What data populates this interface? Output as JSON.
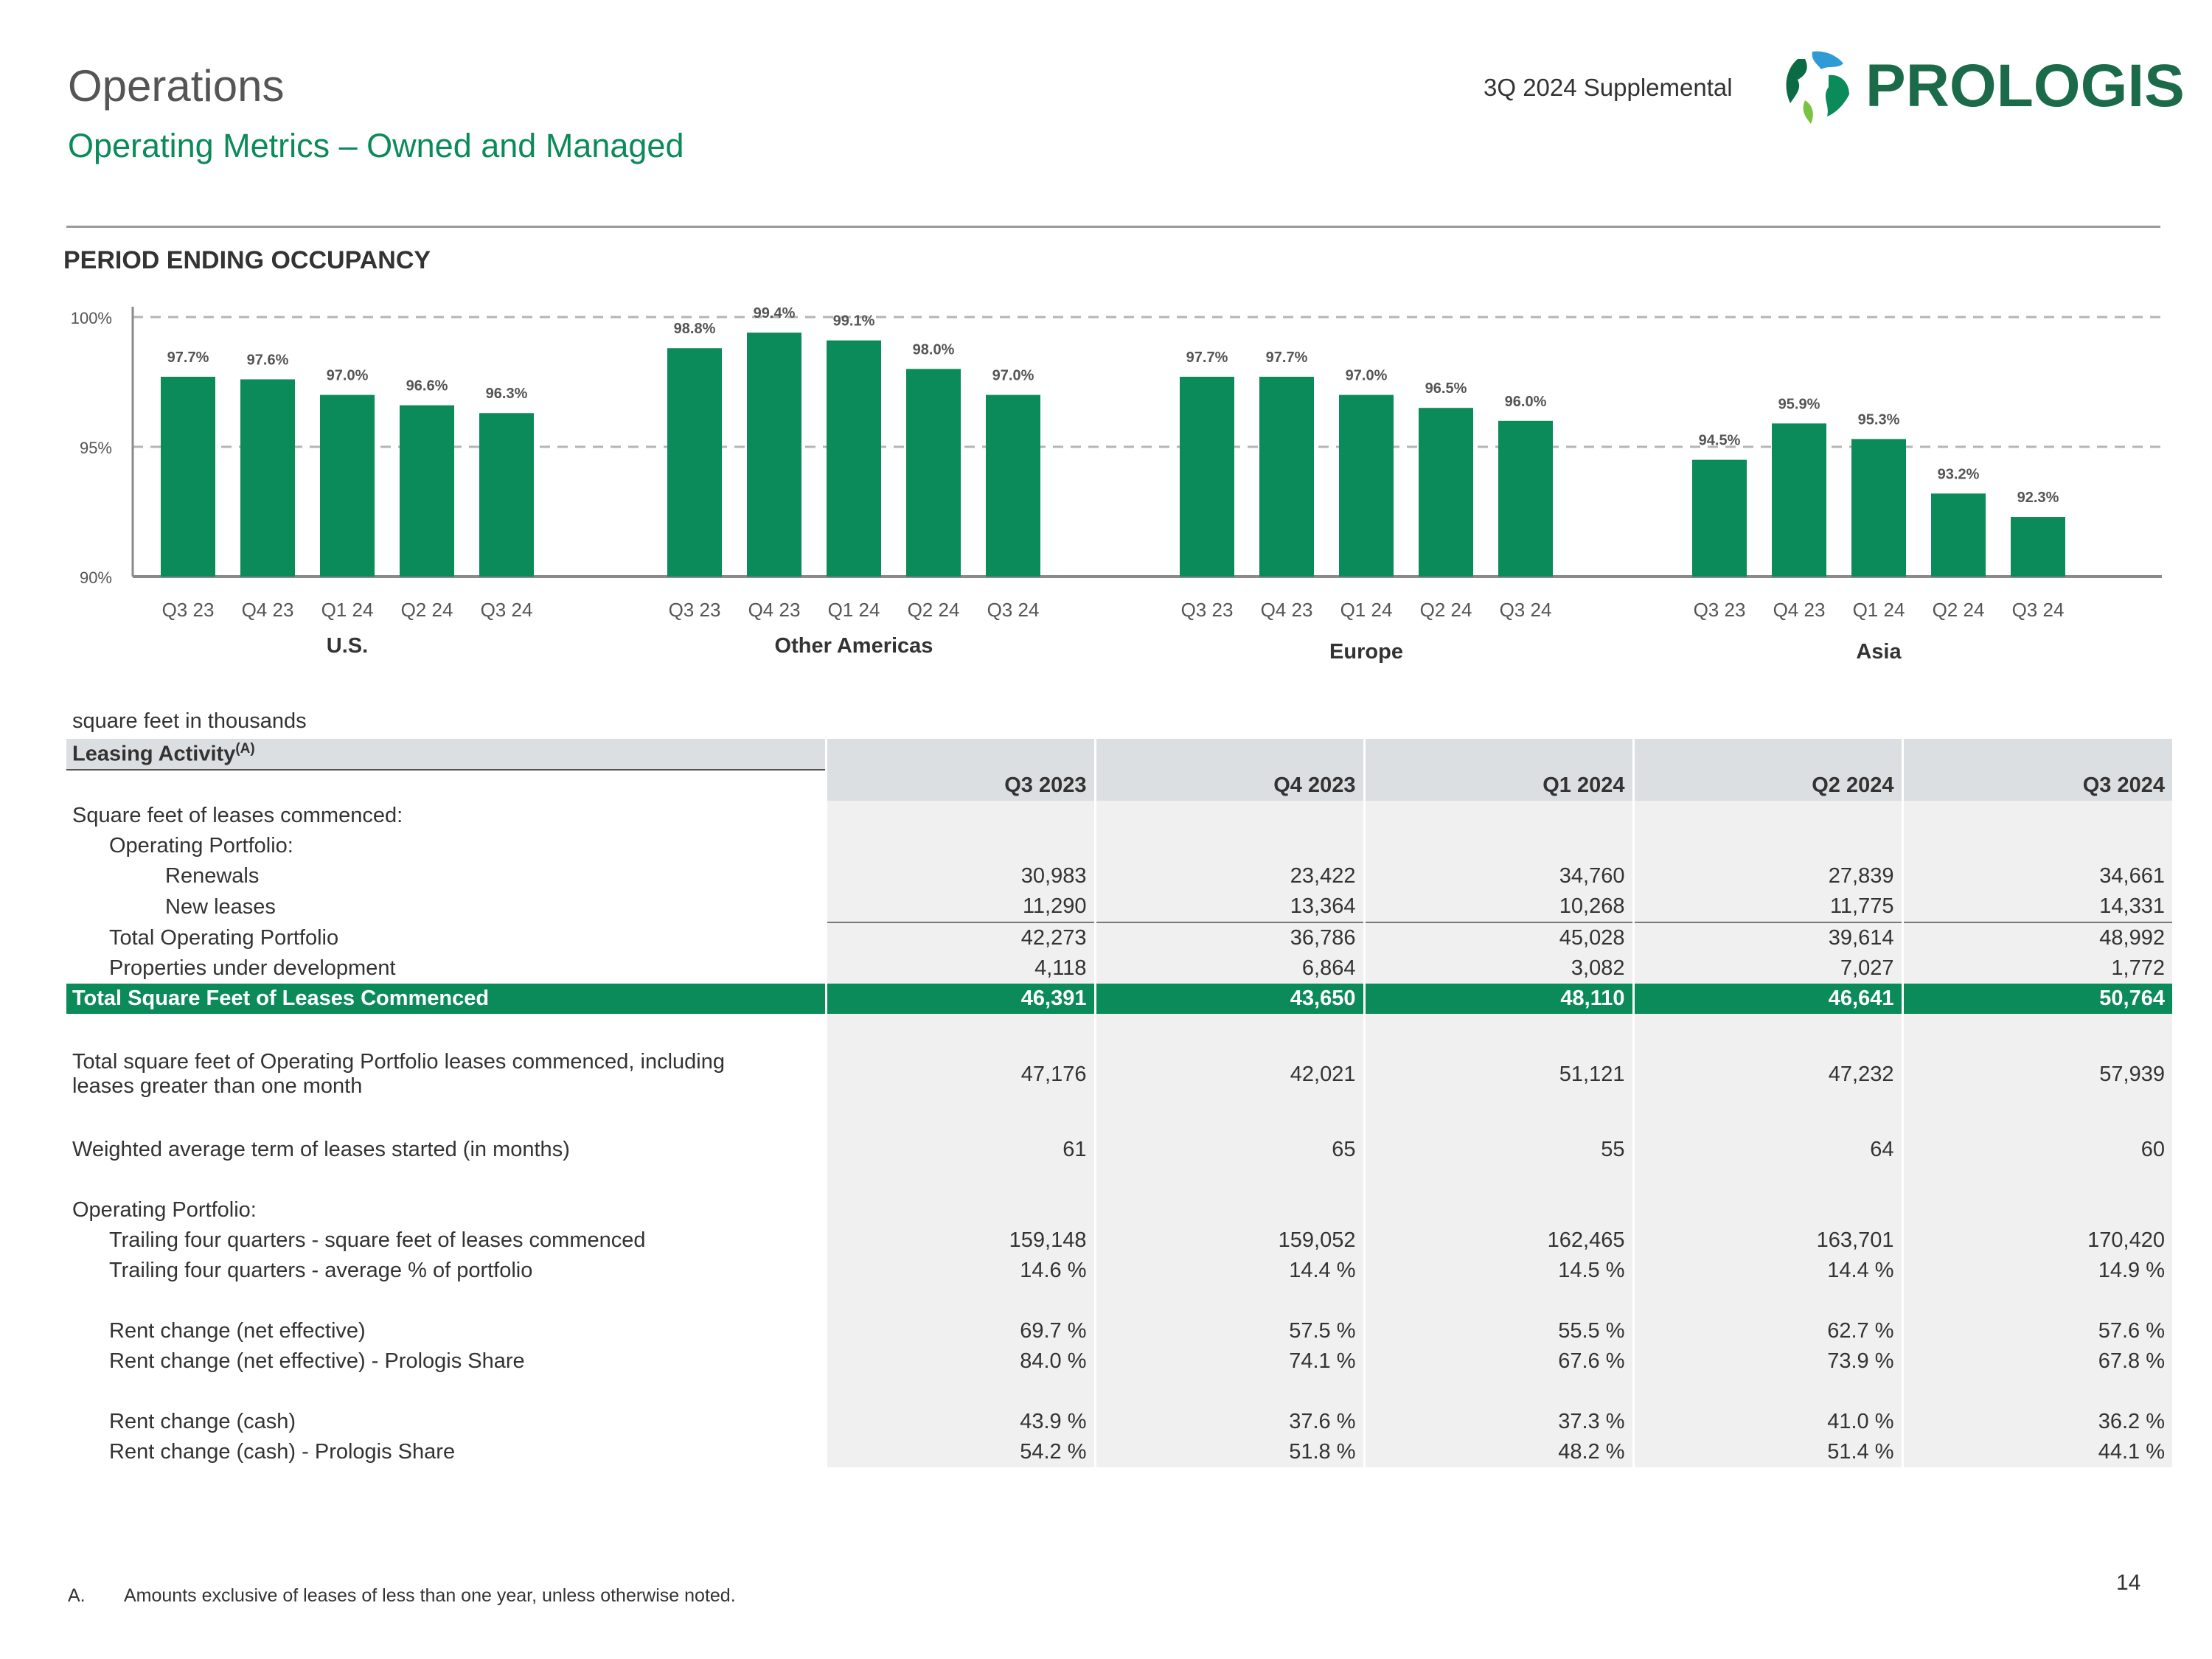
{
  "header": {
    "title": "Operations",
    "subtitle": "Operating Metrics – Owned and Managed",
    "supplemental": "3Q 2024 Supplemental",
    "logo_text": "PROLOGIS",
    "colors": {
      "accent": "#0b8a5a",
      "header_fill": "#dcdfe1",
      "shade": "#f0f0f0"
    }
  },
  "occupancy": {
    "heading": "PERIOD ENDING OCCUPANCY"
  },
  "chart_data": {
    "type": "bar",
    "title": "PERIOD ENDING OCCUPANCY",
    "ylim": [
      90,
      100
    ],
    "yticks": [
      "100%",
      "95%",
      "90%"
    ],
    "reference_lines": [
      100,
      95
    ],
    "grid": false,
    "groups": [
      {
        "name": "U.S.",
        "categories": [
          "Q3 23",
          "Q4 23",
          "Q1 24",
          "Q2 24",
          "Q3 24"
        ],
        "values": [
          97.7,
          97.6,
          97.0,
          96.6,
          96.3
        ],
        "labels": [
          "97.7%",
          "97.6%",
          "97.0%",
          "96.6%",
          "96.3%"
        ]
      },
      {
        "name": "Other Americas",
        "categories": [
          "Q3 23",
          "Q4 23",
          "Q1 24",
          "Q2 24",
          "Q3 24"
        ],
        "values": [
          98.8,
          99.4,
          99.1,
          98.0,
          97.0
        ],
        "labels": [
          "98.8%",
          "99.4%",
          "99.1%",
          "98.0%",
          "97.0%"
        ]
      },
      {
        "name": "Europe",
        "categories": [
          "Q3 23",
          "Q4 23",
          "Q1 24",
          "Q2 24",
          "Q3 24"
        ],
        "values": [
          97.7,
          97.7,
          97.0,
          96.5,
          96.0
        ],
        "labels": [
          "97.7%",
          "97.7%",
          "97.0%",
          "96.5%",
          "96.0%"
        ]
      },
      {
        "name": "Asia",
        "categories": [
          "Q3 23",
          "Q4 23",
          "Q1 24",
          "Q2 24",
          "Q3 24"
        ],
        "values": [
          94.5,
          95.9,
          95.3,
          93.2,
          92.3
        ],
        "labels": [
          "94.5%",
          "95.9%",
          "95.3%",
          "93.2%",
          "92.3%"
        ]
      }
    ]
  },
  "leasing": {
    "units_note": "square feet in thousands",
    "section_title": "Leasing Activity",
    "section_sup": "(A)",
    "columns": [
      "Q3 2023",
      "Q4 2023",
      "Q1 2024",
      "Q2 2024",
      "Q3 2024"
    ],
    "rows": [
      {
        "label": "Square feet of leases commenced:",
        "indent": 0,
        "values": null
      },
      {
        "label": "Operating Portfolio:",
        "indent": 1,
        "values": null
      },
      {
        "label": "Renewals",
        "indent": 2,
        "values": [
          "30,983",
          "23,422",
          "34,760",
          "27,839",
          "34,661"
        ]
      },
      {
        "label": "New leases",
        "indent": 2,
        "values": [
          "11,290",
          "13,364",
          "10,268",
          "11,775",
          "14,331"
        ],
        "ruled": true
      },
      {
        "label": "Total Operating Portfolio",
        "indent": 1,
        "values": [
          "42,273",
          "36,786",
          "45,028",
          "39,614",
          "48,992"
        ]
      },
      {
        "label": "Properties under development",
        "indent": 1,
        "values": [
          "4,118",
          "6,864",
          "3,082",
          "7,027",
          "1,772"
        ]
      },
      {
        "label": "Total Square Feet of Leases Commenced",
        "indent": 0,
        "values": [
          "46,391",
          "43,650",
          "48,110",
          "46,641",
          "50,764"
        ],
        "total": true
      },
      {
        "label": "",
        "indent": 0,
        "values": null
      },
      {
        "label": "Total square feet of Operating Portfolio leases commenced, including leases greater than one month",
        "indent": 0,
        "values": [
          "47,176",
          "42,021",
          "51,121",
          "47,232",
          "57,939"
        ],
        "tall": true
      },
      {
        "label": "",
        "indent": 0,
        "values": null
      },
      {
        "label": "Weighted average term of leases started (in months)",
        "indent": 0,
        "values": [
          "61",
          "65",
          "55",
          "64",
          "60"
        ]
      },
      {
        "label": "",
        "indent": 0,
        "values": null
      },
      {
        "label": "Operating Portfolio:",
        "indent": 0,
        "values": null
      },
      {
        "label": "Trailing four quarters - square feet of leases commenced",
        "indent": 1,
        "values": [
          "159,148",
          "159,052",
          "162,465",
          "163,701",
          "170,420"
        ]
      },
      {
        "label": "Trailing four quarters - average % of portfolio",
        "indent": 1,
        "values": [
          "14.6 %",
          "14.4 %",
          "14.5 %",
          "14.4 %",
          "14.9 %"
        ]
      },
      {
        "label": "",
        "indent": 0,
        "values": null
      },
      {
        "label": "Rent change (net effective)",
        "indent": 1,
        "values": [
          "69.7 %",
          "57.5 %",
          "55.5 %",
          "62.7 %",
          "57.6 %"
        ]
      },
      {
        "label": "Rent change (net effective) - Prologis Share",
        "indent": 1,
        "values": [
          "84.0 %",
          "74.1 %",
          "67.6 %",
          "73.9 %",
          "67.8 %"
        ]
      },
      {
        "label": "",
        "indent": 0,
        "values": null
      },
      {
        "label": "Rent change (cash)",
        "indent": 1,
        "values": [
          "43.9 %",
          "37.6 %",
          "37.3 %",
          "41.0 %",
          "36.2 %"
        ]
      },
      {
        "label": "Rent change (cash) - Prologis Share",
        "indent": 1,
        "values": [
          "54.2 %",
          "51.8 %",
          "48.2 %",
          "51.4 %",
          "44.1 %"
        ]
      }
    ]
  },
  "footnote": {
    "letter": "A.",
    "text": "Amounts exclusive of leases of less than one year, unless otherwise noted."
  },
  "page_number": "14"
}
